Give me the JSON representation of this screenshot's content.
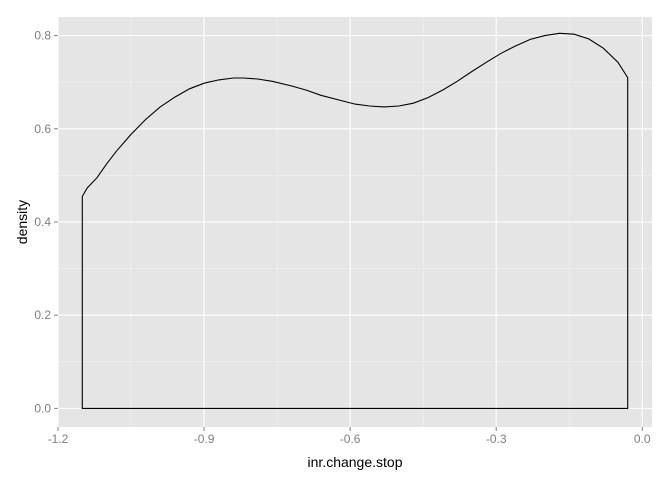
{
  "chart_data": {
    "type": "area",
    "title": "",
    "xlabel": "inr.change.stop",
    "ylabel": "density",
    "xlim": [
      -1.2,
      0.02
    ],
    "ylim": [
      -0.04,
      0.84
    ],
    "x_ticks": [
      {
        "value": -1.2,
        "label": "-1.2"
      },
      {
        "value": -0.9,
        "label": "-0.9"
      },
      {
        "value": -0.6,
        "label": "-0.6"
      },
      {
        "value": -0.3,
        "label": "-0.3"
      },
      {
        "value": 0.0,
        "label": "0.0"
      }
    ],
    "y_ticks": [
      {
        "value": 0.0,
        "label": "0.0"
      },
      {
        "value": 0.2,
        "label": "0.2"
      },
      {
        "value": 0.4,
        "label": "0.4"
      },
      {
        "value": 0.6,
        "label": "0.6"
      },
      {
        "value": 0.8,
        "label": "0.8"
      }
    ],
    "grid": true,
    "panel_color": "#e5e5e5",
    "grid_major_color": "#ffffff",
    "grid_minor_color": "#f2f2f2",
    "line_color": "#000000",
    "x": [
      -1.15,
      -1.14,
      -1.12,
      -1.1,
      -1.08,
      -1.05,
      -1.02,
      -0.99,
      -0.96,
      -0.93,
      -0.9,
      -0.87,
      -0.84,
      -0.82,
      -0.79,
      -0.76,
      -0.72,
      -0.69,
      -0.66,
      -0.62,
      -0.59,
      -0.56,
      -0.53,
      -0.5,
      -0.47,
      -0.44,
      -0.41,
      -0.38,
      -0.35,
      -0.32,
      -0.29,
      -0.26,
      -0.23,
      -0.2,
      -0.17,
      -0.14,
      -0.11,
      -0.08,
      -0.05,
      -0.03
    ],
    "y": [
      0.455,
      0.473,
      0.495,
      0.525,
      0.552,
      0.588,
      0.62,
      0.647,
      0.668,
      0.686,
      0.698,
      0.705,
      0.709,
      0.709,
      0.707,
      0.702,
      0.692,
      0.683,
      0.672,
      0.661,
      0.653,
      0.649,
      0.647,
      0.649,
      0.655,
      0.667,
      0.683,
      0.702,
      0.723,
      0.743,
      0.762,
      0.778,
      0.792,
      0.8,
      0.805,
      0.803,
      0.793,
      0.773,
      0.743,
      0.71
    ]
  }
}
